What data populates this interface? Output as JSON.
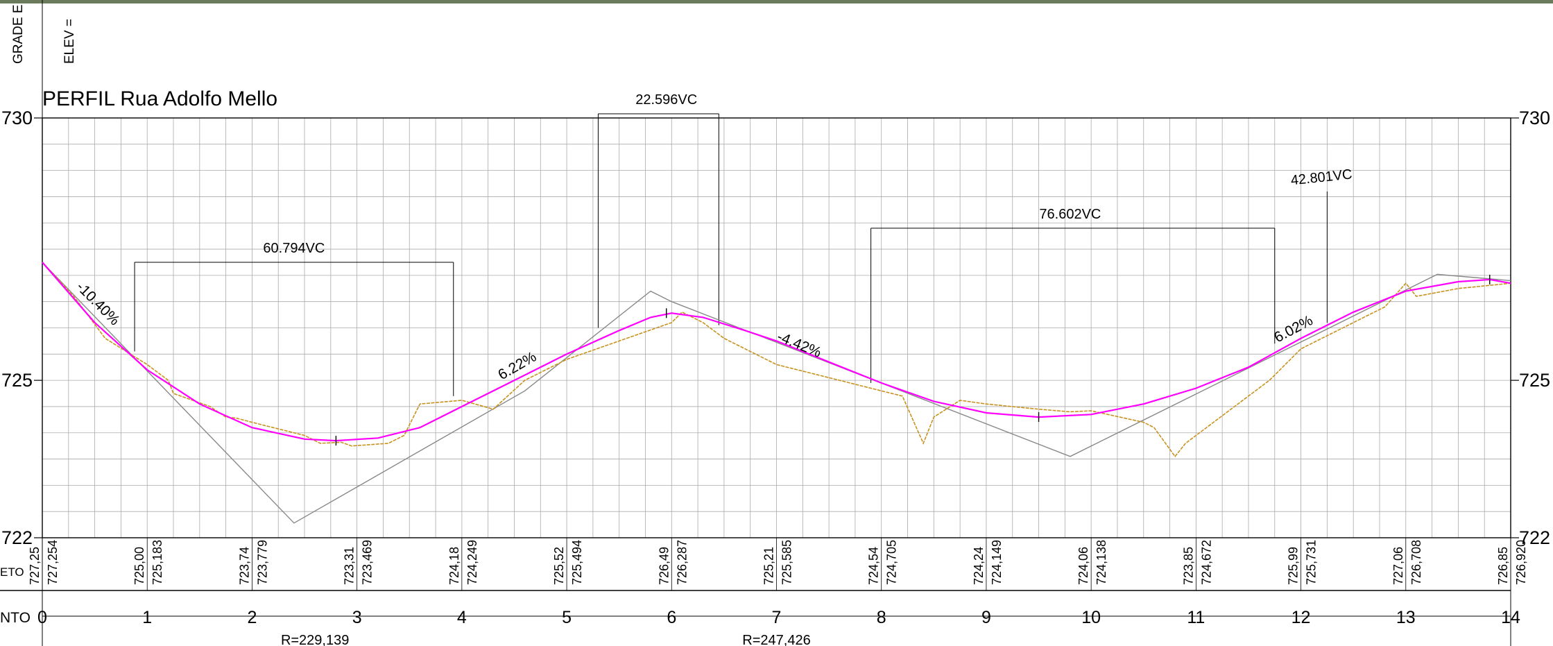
{
  "title": "PERFIL Rua Adolfo Mello",
  "header_labels": {
    "grade": "GRADE E",
    "elev": "ELEV = "
  },
  "row_labels": {
    "elevations": "ETO",
    "stations": "NTO"
  },
  "colors": {
    "design_profile": "#ff00ff",
    "terrain_profile": "#c8921e",
    "tangent_lines": "#888888",
    "grid": "#aaaaaa",
    "text": "#000000"
  },
  "chart_data": {
    "type": "line",
    "title": "PERFIL Rua Adolfo Mello",
    "x_range": [
      0,
      14
    ],
    "y_range": [
      722,
      730
    ],
    "y_ticks": [
      {
        "value": 730,
        "label": "730"
      },
      {
        "value": 725,
        "label": "725"
      },
      {
        "value": 722,
        "label": "722"
      }
    ],
    "x_ticks": [
      "0",
      "1",
      "2",
      "3",
      "4",
      "5",
      "6",
      "7",
      "8",
      "9",
      "10",
      "11",
      "12",
      "13",
      "14"
    ],
    "grid": true,
    "series": [
      {
        "key": "design",
        "points": [
          [
            0,
            727.25
          ],
          [
            0.5,
            726.1
          ],
          [
            1,
            725.2
          ],
          [
            1.5,
            724.55
          ],
          [
            2,
            724.1
          ],
          [
            2.5,
            723.88
          ],
          [
            2.8,
            723.85
          ],
          [
            3.2,
            723.9
          ],
          [
            3.6,
            724.1
          ],
          [
            4,
            724.5
          ],
          [
            4.5,
            725.0
          ],
          [
            5,
            725.5
          ],
          [
            5.5,
            725.95
          ],
          [
            5.8,
            726.2
          ],
          [
            6,
            726.28
          ],
          [
            6.3,
            726.2
          ],
          [
            6.7,
            725.95
          ],
          [
            7,
            725.75
          ],
          [
            7.5,
            725.35
          ],
          [
            8,
            724.95
          ],
          [
            8.5,
            724.6
          ],
          [
            9,
            724.38
          ],
          [
            9.5,
            724.3
          ],
          [
            10,
            724.35
          ],
          [
            10.5,
            724.55
          ],
          [
            11,
            724.85
          ],
          [
            11.5,
            725.25
          ],
          [
            12,
            725.8
          ],
          [
            12.5,
            726.3
          ],
          [
            13,
            726.7
          ],
          [
            13.5,
            726.88
          ],
          [
            13.8,
            726.92
          ],
          [
            14,
            726.85
          ]
        ]
      },
      {
        "key": "terrain",
        "points": [
          [
            0,
            727.25
          ],
          [
            0.3,
            726.6
          ],
          [
            0.6,
            725.8
          ],
          [
            1,
            725.3
          ],
          [
            1.2,
            725.0
          ],
          [
            1.25,
            724.75
          ],
          [
            1.6,
            724.5
          ],
          [
            1.75,
            724.3
          ],
          [
            1.85,
            724.28
          ],
          [
            2,
            724.2
          ],
          [
            2.2,
            724.1
          ],
          [
            2.5,
            723.95
          ],
          [
            2.65,
            723.8
          ],
          [
            2.85,
            723.82
          ],
          [
            2.95,
            723.75
          ],
          [
            3.3,
            723.8
          ],
          [
            3.45,
            723.95
          ],
          [
            3.6,
            724.55
          ],
          [
            4.0,
            724.62
          ],
          [
            4.3,
            724.45
          ],
          [
            4.6,
            725.0
          ],
          [
            5,
            725.4
          ],
          [
            5.5,
            725.75
          ],
          [
            6,
            726.1
          ],
          [
            6.1,
            726.3
          ],
          [
            6.3,
            726.1
          ],
          [
            6.5,
            725.8
          ],
          [
            7,
            725.3
          ],
          [
            7.5,
            725.05
          ],
          [
            8,
            724.8
          ],
          [
            8.2,
            724.7
          ],
          [
            8.4,
            723.8
          ],
          [
            8.5,
            724.3
          ],
          [
            8.75,
            724.62
          ],
          [
            9,
            724.55
          ],
          [
            9.5,
            724.45
          ],
          [
            9.8,
            724.4
          ],
          [
            10,
            724.42
          ],
          [
            10.5,
            724.2
          ],
          [
            10.6,
            724.1
          ],
          [
            10.8,
            723.55
          ],
          [
            10.9,
            723.8
          ],
          [
            11.3,
            724.4
          ],
          [
            11.7,
            725.0
          ],
          [
            12,
            725.6
          ],
          [
            12.5,
            726.1
          ],
          [
            12.8,
            726.4
          ],
          [
            13.0,
            726.85
          ],
          [
            13.1,
            726.6
          ],
          [
            13.5,
            726.75
          ],
          [
            14,
            726.85
          ]
        ]
      },
      {
        "key": "tangents",
        "points": [
          [
            0,
            727.25
          ],
          [
            2.4,
            722.28
          ],
          [
            4.6,
            724.8
          ],
          [
            5.8,
            726.7
          ],
          [
            6.0,
            726.5
          ],
          [
            9.8,
            723.55
          ],
          [
            13.3,
            727.02
          ],
          [
            14,
            726.9
          ]
        ]
      }
    ],
    "grades": [
      {
        "label": "-10.40%",
        "x": 0.5,
        "y": 726.4,
        "rotate": 45
      },
      {
        "label": "6.22%",
        "x": 4.55,
        "y": 725.2,
        "rotate": -30
      },
      {
        "label": "-4.42%",
        "x": 7.2,
        "y": 725.6,
        "rotate": 22
      },
      {
        "label": "6.02%",
        "x": 11.95,
        "y": 725.9,
        "rotate": -28
      }
    ],
    "vertical_curves": [
      {
        "label": "60.794VC",
        "start": 0.88,
        "end": 3.92,
        "top": 727.25,
        "start_base": 725.55,
        "end_base": 724.7,
        "label_at": 2.4
      },
      {
        "label": "22.596VC",
        "start": 5.3,
        "end": 6.45,
        "top": 730.08,
        "start_base": 726.0,
        "end_base": 726.05,
        "label_at": 5.95
      },
      {
        "label": "76.602VC",
        "start": 7.9,
        "end": 11.75,
        "top": 727.9,
        "start_base": 724.95,
        "end_base": 725.7,
        "label_at": 9.8
      },
      {
        "label": "42.801VC",
        "start": 12.25,
        "end": 12.25,
        "top": 728.6,
        "start_base": 726.1,
        "end_base": 726.1,
        "label_at": 12.2,
        "rotate": -6
      }
    ],
    "vertex_marks": [
      {
        "x": 2.8,
        "y": 723.85
      },
      {
        "x": 5.95,
        "y": 726.28
      },
      {
        "x": 9.5,
        "y": 724.3
      },
      {
        "x": 13.8,
        "y": 726.92
      }
    ],
    "station_elevations": [
      {
        "at": 0,
        "terrain": "727,25",
        "design": "727,254"
      },
      {
        "at": 1,
        "terrain": "725,00",
        "design": "725,183"
      },
      {
        "at": 2,
        "terrain": "723,74",
        "design": "723,779"
      },
      {
        "at": 3,
        "terrain": "723,31",
        "design": "723,469"
      },
      {
        "at": 4,
        "terrain": "724,18",
        "design": "724,249"
      },
      {
        "at": 5,
        "terrain": "725,52",
        "design": "725,494"
      },
      {
        "at": 6,
        "terrain": "726,49",
        "design": "726,287"
      },
      {
        "at": 7,
        "terrain": "725,21",
        "design": "725,585"
      },
      {
        "at": 8,
        "terrain": "724,54",
        "design": "724,705"
      },
      {
        "at": 9,
        "terrain": "724,24",
        "design": "724,149"
      },
      {
        "at": 10,
        "terrain": "724,06",
        "design": "724,138"
      },
      {
        "at": 11,
        "terrain": "723,85",
        "design": "724,672"
      },
      {
        "at": 12,
        "terrain": "725,99",
        "design": "725,731"
      },
      {
        "at": 13,
        "terrain": "727,06",
        "design": "726,708"
      },
      {
        "at": 14,
        "terrain": "726,85",
        "design": "726,920"
      }
    ],
    "radius_labels": [
      {
        "label": "R=229,139",
        "at": 2.6
      },
      {
        "label": "R=247,426",
        "at": 7.0
      }
    ]
  }
}
